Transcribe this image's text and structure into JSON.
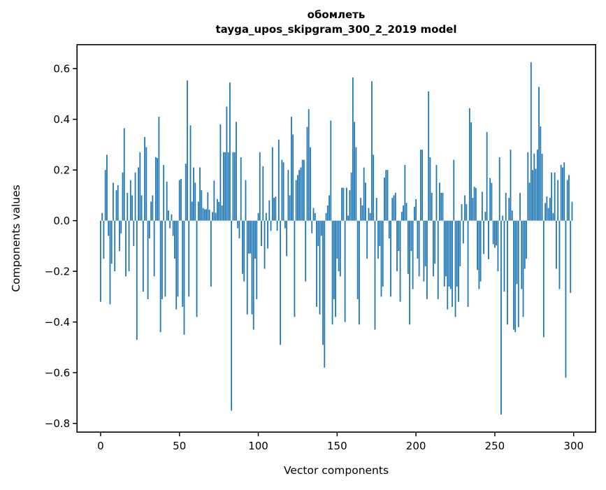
{
  "title": {
    "line1": "обомлеть",
    "line2": "tayga_upos_skipgram_300_2_2019 model"
  },
  "colors": {
    "bar": "#1f77b4",
    "axis": "#000000",
    "background": "#ffffff",
    "text": "#000000"
  },
  "chart_data": {
    "type": "bar",
    "title": "обомлеть — tayga_upos_skipgram_300_2_2019 model",
    "xlabel": "Vector components",
    "ylabel": "Components values",
    "legend": null,
    "grid": false,
    "x_start": 0,
    "n_bars": 300,
    "xticks": [
      0,
      50,
      100,
      150,
      200,
      250,
      300
    ],
    "yticks": [
      0.6,
      0.4,
      0.2,
      0.0,
      -0.2,
      -0.4,
      -0.6,
      -0.8
    ],
    "xlim": [
      -14.95,
      313.95
    ],
    "ylim": [
      -0.8345,
      0.6945
    ],
    "values": [
      -0.32,
      0.03,
      -0.15,
      0.2,
      0.26,
      -0.06,
      -0.33,
      -0.17,
      0.15,
      -0.2,
      0.12,
      0.14,
      -0.12,
      -0.05,
      0.19,
      0.365,
      -0.22,
      0.11,
      -0.2,
      0.16,
      0.1,
      -0.1,
      0.19,
      -0.47,
      0.21,
      0.27,
      0.1,
      -0.28,
      0.33,
      0.29,
      -0.31,
      -0.07,
      0.075,
      0.1,
      -0.22,
      0.25,
      0.247,
      0.41,
      -0.44,
      -0.31,
      0.22,
      -0.3,
      0.154,
      0.04,
      -0.03,
      0.025,
      -0.06,
      -0.15,
      -0.35,
      -0.3,
      0.16,
      0.165,
      -0.34,
      -0.45,
      0.225,
      0.553,
      -0.3,
      0.376,
      0.075,
      0.21,
      0.15,
      -0.38,
      0.075,
      0.21,
      0.12,
      0.05,
      0.045,
      0.045,
      0.112,
      0.043,
      -0.26,
      0.034,
      0.158,
      0.031,
      0.085,
      0.074,
      0.38,
      0.06,
      0.27,
      0.27,
      0.45,
      0.27,
      0.545,
      -0.75,
      0.27,
      0.27,
      0.39,
      -0.03,
      -0.07,
      0.25,
      -0.21,
      -0.24,
      0.16,
      -0.37,
      -0.13,
      -0.13,
      -0.37,
      -0.43,
      -0.15,
      -0.31,
      0.03,
      0.27,
      -0.1,
      0.215,
      -0.19,
      0.03,
      -0.11,
      0.08,
      -0.04,
      0.29,
      0.09,
      0.095,
      -0.04,
      0.32,
      -0.49,
      0.24,
      0.23,
      -0.03,
      -0.14,
      0.2,
      0.1,
      0.41,
      0.34,
      -0.38,
      0.16,
      0.18,
      0.2,
      0.21,
      0.24,
      0.24,
      -0.24,
      0.37,
      0.44,
      0.29,
      -0.05,
      0.05,
      0.03,
      -0.34,
      -0.1,
      -0.37,
      -0.06,
      -0.49,
      -0.58,
      0.03,
      0.06,
      0.1,
      0.395,
      -0.41,
      -0.31,
      -0.38,
      -0.15,
      -0.2,
      -0.22,
      0.13,
      0.13,
      -0.4,
      0.13,
      0.02,
      0.12,
      0.19,
      0.565,
      0.39,
      0.29,
      -0.31,
      -0.41,
      0.09,
      0.06,
      0.21,
      0.15,
      -0.15,
      0.05,
      0.03,
      0.55,
      0.26,
      -0.43,
      0.09,
      -0.15,
      -0.1,
      -0.3,
      -0.26,
      0.17,
      0.2,
      0.2,
      -0.07,
      -0.3,
      0.09,
      0.1,
      0.11,
      -0.2,
      -0.12,
      -0.32,
      0.035,
      0.06,
      0.22,
      0.07,
      -0.21,
      -0.41,
      -0.12,
      -0.27,
      0.055,
      0.085,
      -0.15,
      -0.22,
      0.28,
      0.28,
      -0.24,
      -0.18,
      -0.31,
      0.51,
      0.25,
      0.11,
      -0.22,
      -0.17,
      0.22,
      -0.31,
      0.15,
      0.11,
      0.11,
      -0.26,
      -0.22,
      -0.35,
      -0.26,
      -0.27,
      -0.34,
      0.24,
      -0.38,
      -0.26,
      -0.32,
      -0.18,
      0.065,
      -0.09,
      0.1,
      0.065,
      -0.34,
      0.444,
      0.388,
      0.09,
      0.134,
      0.129,
      -0.195,
      -0.27,
      -0.24,
      0.114,
      -0.132,
      0.035,
      0.35,
      -0.152,
      0.168,
      0.149,
      -0.093,
      -0.107,
      -0.098,
      -0.2,
      0.25,
      -0.765,
      0.02,
      -0.28,
      0.11,
      -0.41,
      0.09,
      0.28,
      0.04,
      -0.43,
      -0.44,
      -0.25,
      -0.42,
      0.11,
      -0.27,
      -0.38,
      -0.19,
      -0.15,
      0.27,
      0.15,
      0.625,
      0.2,
      0.265,
      0.205,
      0.28,
      0.528,
      0.372,
      0.264,
      -0.46,
      0.07,
      0.095,
      0.05,
      0.09,
      0.19,
      0.03,
      0.19,
      -0.19,
      0.16,
      -0.27,
      0.22,
      0.21,
      0.23,
      -0.62,
      0.16,
      0.18,
      -0.285,
      0.075
    ]
  }
}
